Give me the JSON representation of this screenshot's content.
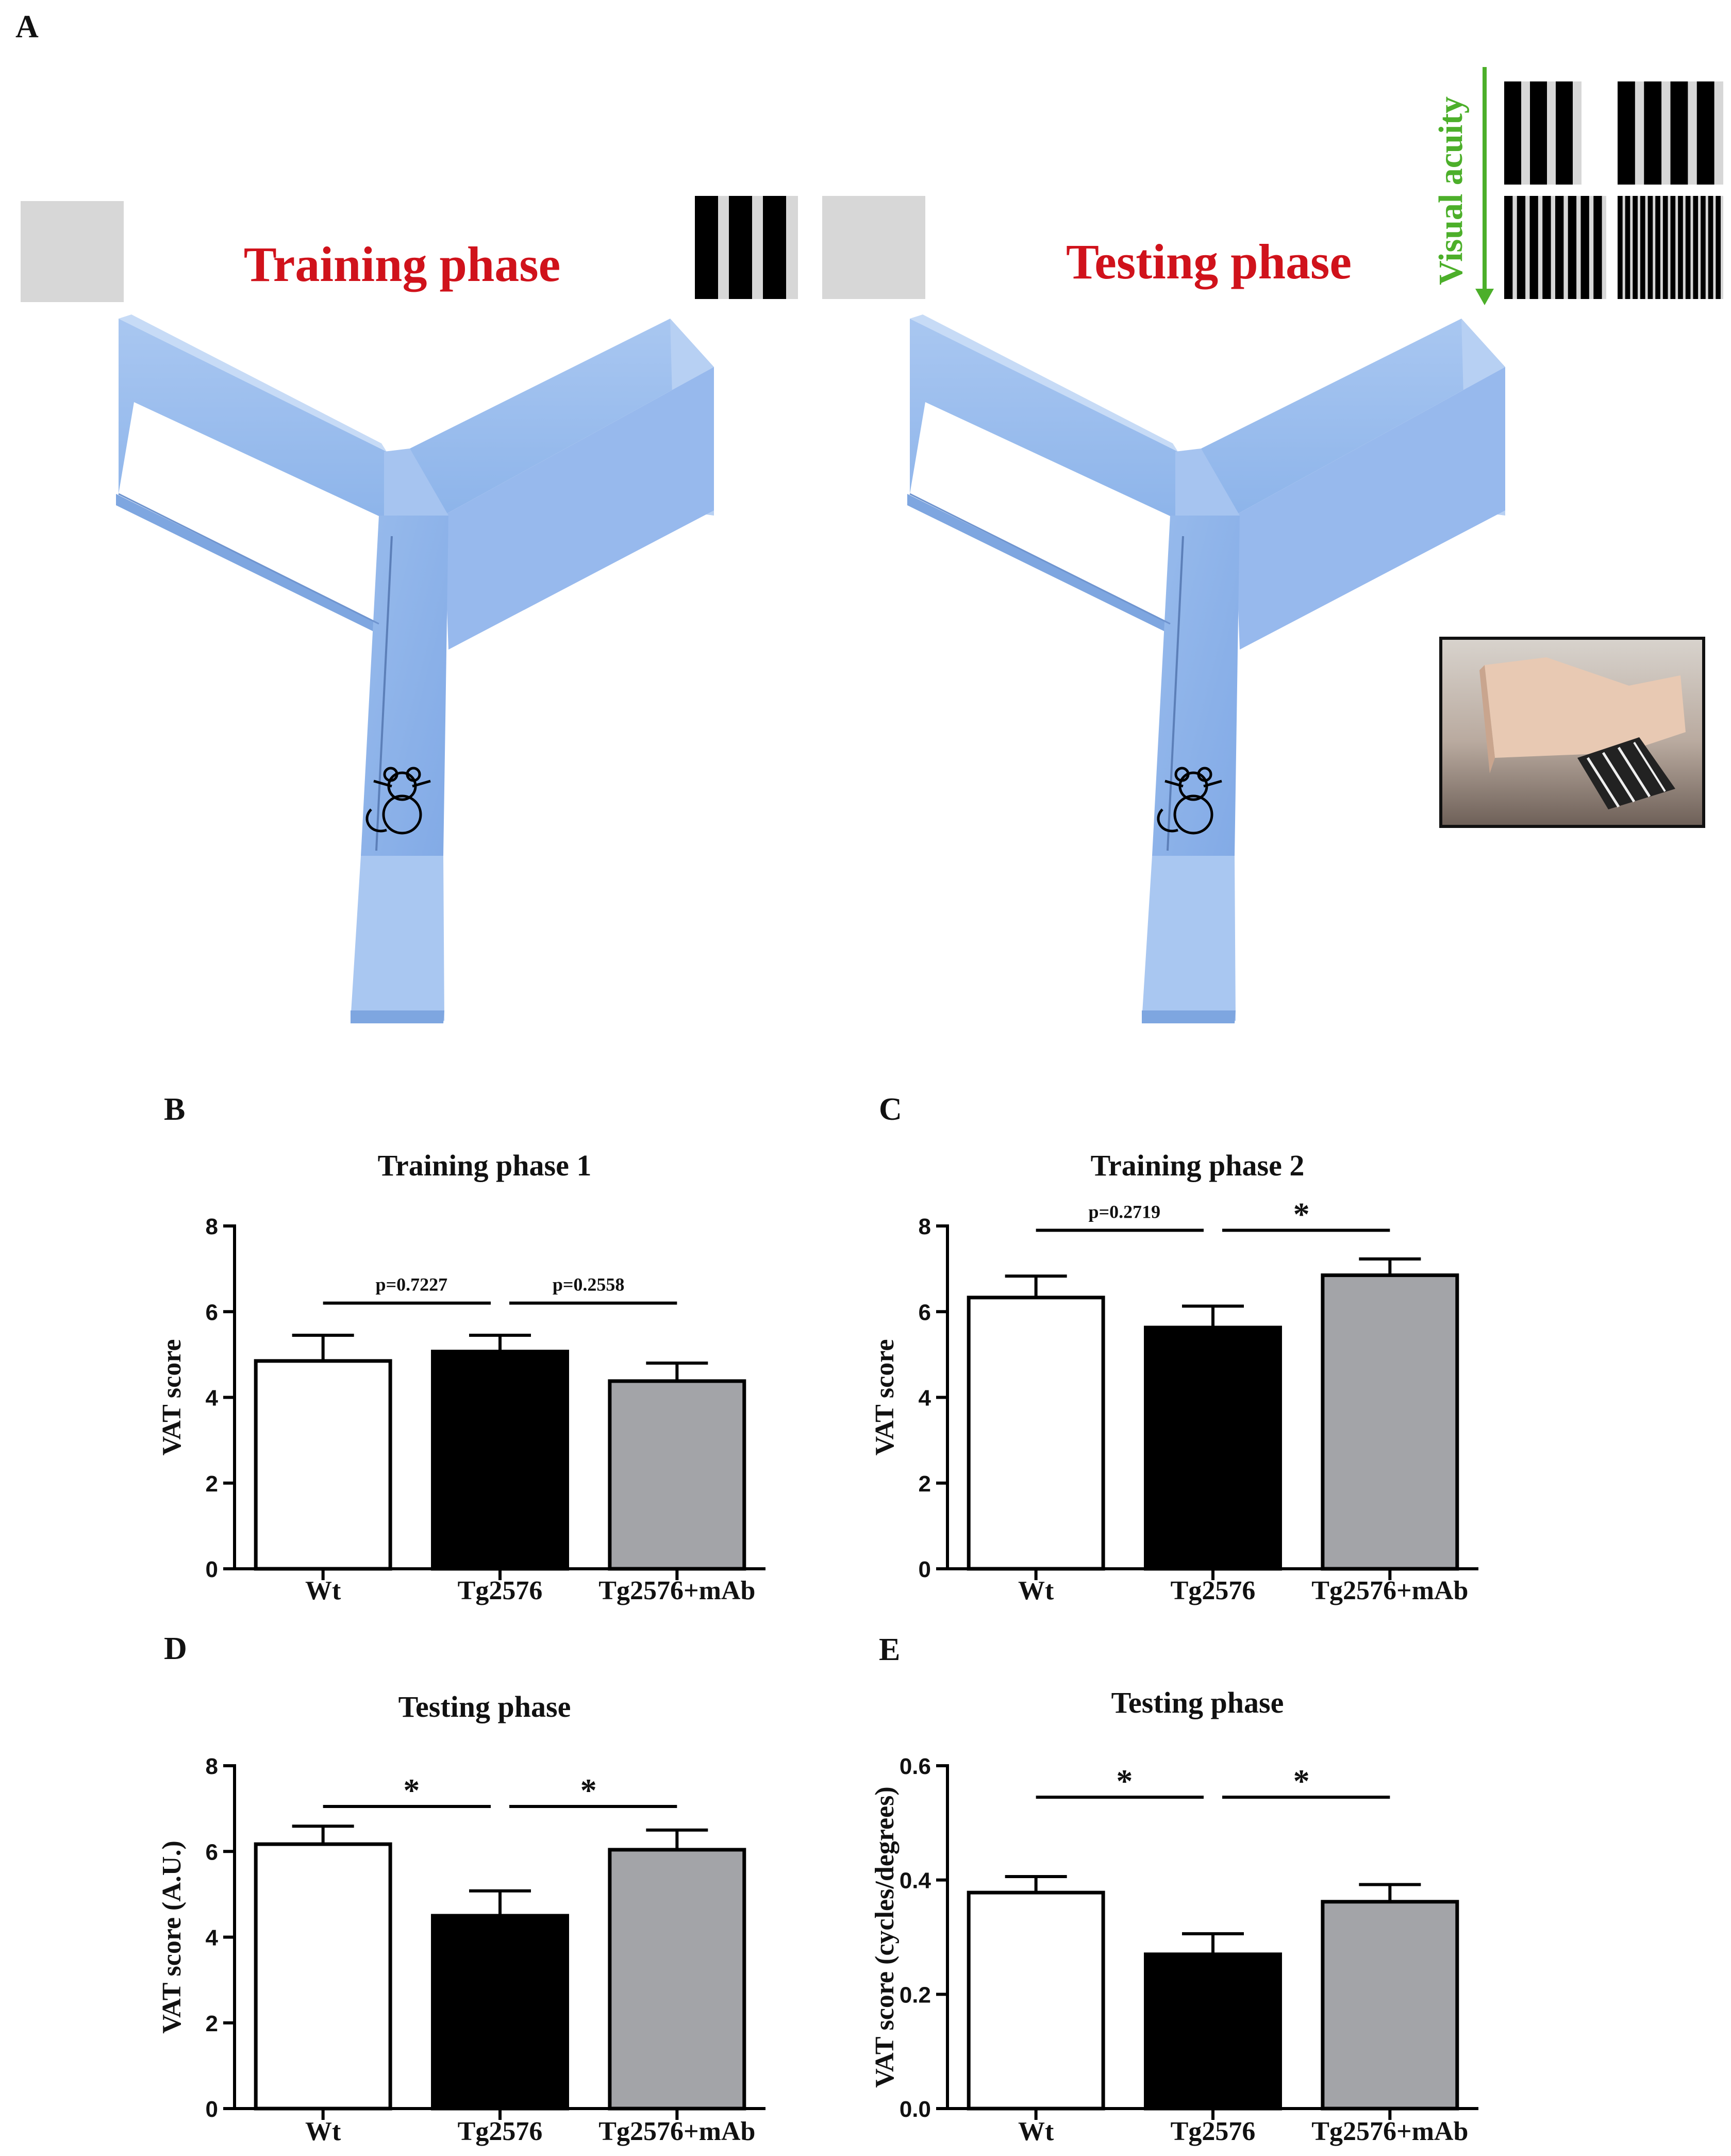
{
  "panel_a": {
    "letter": "A",
    "training_title": "Training phase",
    "testing_title": "Testing phase",
    "acuity_label": "Visual acuity"
  },
  "chart_data": [
    {
      "panel": "B",
      "type": "bar",
      "title": "Training phase 1",
      "ylabel": "VAT score",
      "xlabel": "",
      "categories": [
        "Wt",
        "Tg2576",
        "Tg2576+mAb"
      ],
      "values": [
        4.85,
        5.07,
        4.38
      ],
      "errors": [
        0.6,
        0.38,
        0.42
      ],
      "ylim": [
        0,
        8
      ],
      "yticks": [
        "0",
        "2",
        "4",
        "6",
        "8"
      ],
      "ytick_values": [
        0,
        2,
        4,
        6,
        8
      ],
      "bar_colors": [
        "#ffffff",
        "#000000",
        "#a3a4a8"
      ],
      "comparisons": [
        {
          "from": 0,
          "to": 1,
          "label": "p=0.7227",
          "y": 6.2
        },
        {
          "from": 1,
          "to": 2,
          "label": "p=0.2558",
          "y": 6.2
        }
      ]
    },
    {
      "panel": "C",
      "type": "bar",
      "title": "Training phase 2",
      "ylabel": "VAT score",
      "xlabel": "",
      "categories": [
        "Wt",
        "Tg2576",
        "Tg2576+mAb"
      ],
      "values": [
        6.33,
        5.63,
        6.85
      ],
      "errors": [
        0.5,
        0.5,
        0.38
      ],
      "ylim": [
        0,
        8
      ],
      "yticks": [
        "0",
        "2",
        "4",
        "6",
        "8"
      ],
      "ytick_values": [
        0,
        2,
        4,
        6,
        8
      ],
      "bar_colors": [
        "#ffffff",
        "#000000",
        "#a3a4a8"
      ],
      "comparisons": [
        {
          "from": 0,
          "to": 1,
          "label": "p=0.2719",
          "y": 7.9
        },
        {
          "from": 1,
          "to": 2,
          "label": "*",
          "y": 7.9
        }
      ]
    },
    {
      "panel": "D",
      "type": "bar",
      "title": "Testing phase",
      "ylabel": "VAT score (A.U.)",
      "xlabel": "",
      "categories": [
        "Wt",
        "Tg2576",
        "Tg2576+mAb"
      ],
      "values": [
        6.17,
        4.5,
        6.04
      ],
      "errors": [
        0.42,
        0.58,
        0.46
      ],
      "ylim": [
        0,
        8
      ],
      "yticks": [
        "0",
        "2",
        "4",
        "6",
        "8"
      ],
      "ytick_values": [
        0,
        2,
        4,
        6,
        8
      ],
      "bar_colors": [
        "#ffffff",
        "#000000",
        "#a3a4a8"
      ],
      "comparisons": [
        {
          "from": 0,
          "to": 1,
          "label": "*",
          "y": 7.05
        },
        {
          "from": 1,
          "to": 2,
          "label": "*",
          "y": 7.05
        }
      ]
    },
    {
      "panel": "E",
      "type": "bar",
      "title": "Testing phase",
      "ylabel": "VAT score (cycles/degrees)",
      "xlabel": "",
      "categories": [
        "Wt",
        "Tg2576",
        "Tg2576+mAb"
      ],
      "values": [
        0.378,
        0.27,
        0.362
      ],
      "errors": [
        0.028,
        0.036,
        0.03
      ],
      "ylim": [
        0,
        0.6
      ],
      "yticks": [
        "0.0",
        "0.2",
        "0.4",
        "0.6"
      ],
      "ytick_values": [
        0,
        0.2,
        0.4,
        0.6
      ],
      "bar_colors": [
        "#ffffff",
        "#000000",
        "#a3a4a8"
      ],
      "comparisons": [
        {
          "from": 0,
          "to": 1,
          "label": "*",
          "y": 0.545
        },
        {
          "from": 1,
          "to": 2,
          "label": "*",
          "y": 0.545
        }
      ]
    }
  ]
}
